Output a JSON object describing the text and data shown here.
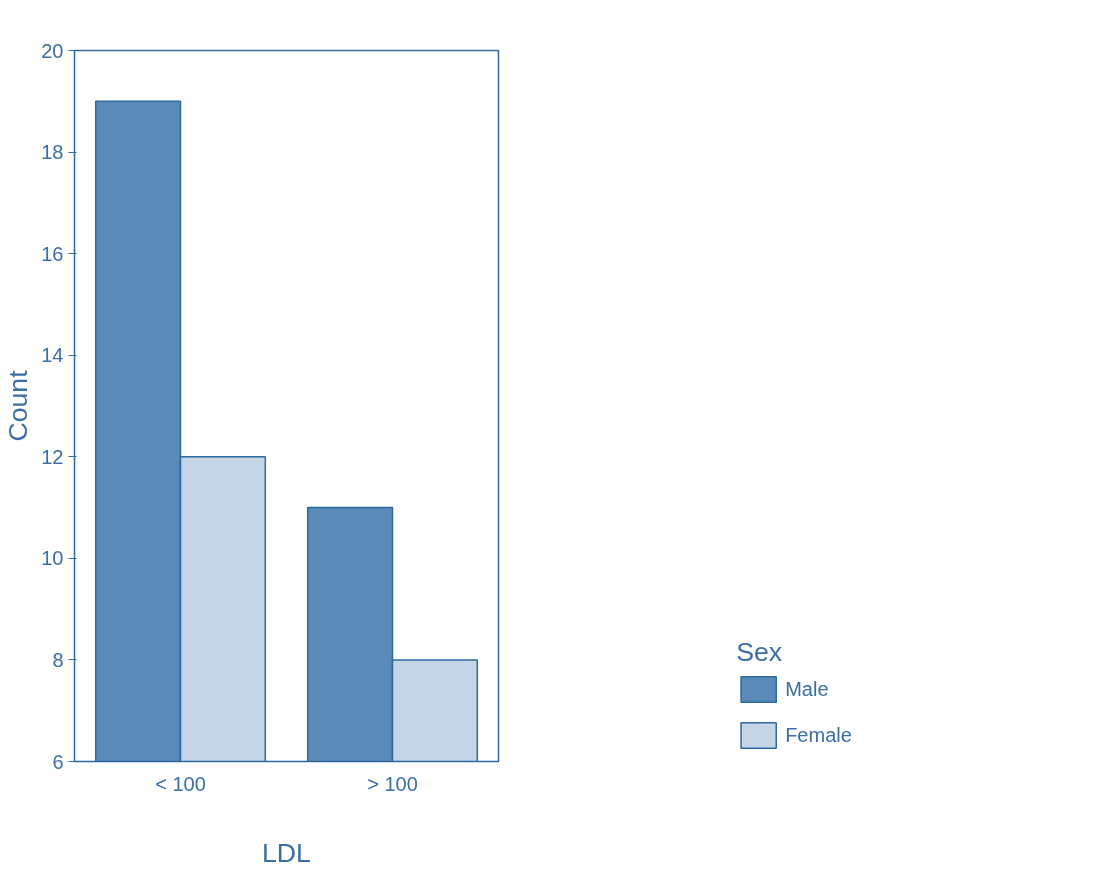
{
  "chart_data": {
    "type": "bar",
    "xlabel": "LDL",
    "ylabel": "Count",
    "legend_title": "Sex",
    "categories": [
      "< 100",
      "> 100"
    ],
    "series": [
      {
        "name": "Male",
        "color": "#5a8bb8",
        "values": [
          19,
          11
        ]
      },
      {
        "name": "Female",
        "color": "#c5d5e5",
        "values": [
          12,
          8
        ]
      }
    ],
    "ylim": [
      6,
      20
    ],
    "yticks": [
      6,
      8,
      10,
      12,
      14,
      16,
      18,
      20
    ],
    "grid": false,
    "legend": "right"
  }
}
